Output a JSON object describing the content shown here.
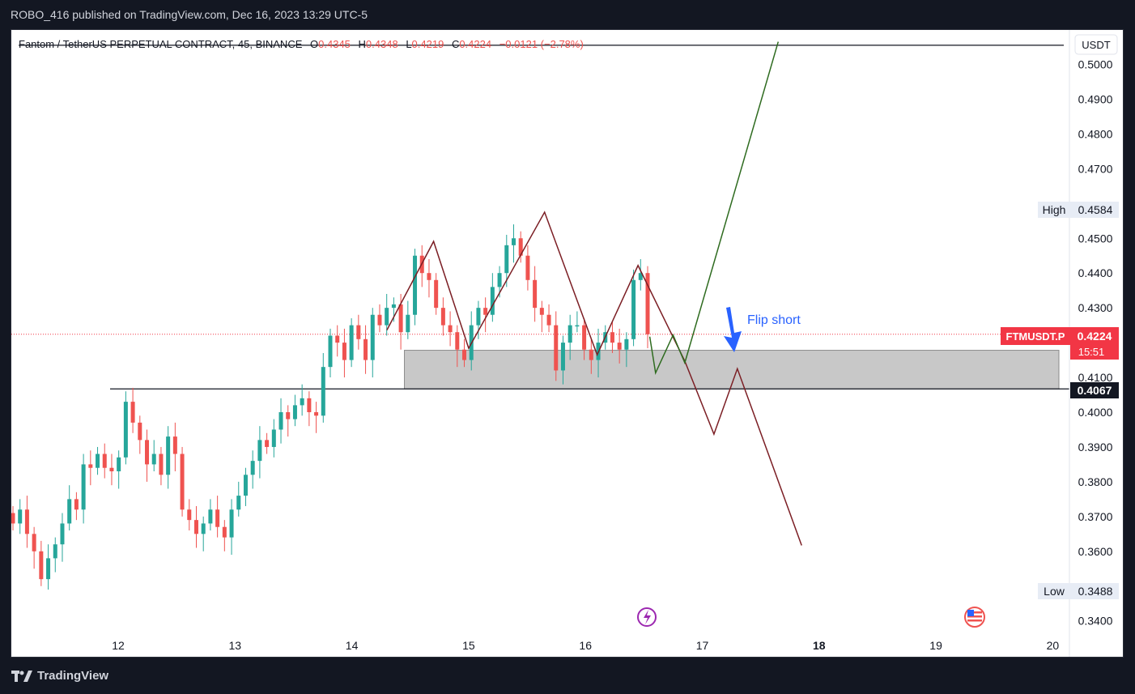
{
  "header": {
    "publisher_line": "ROBO_416 published on TradingView.com, Dec 16, 2023 13:29 UTC-5"
  },
  "legend": {
    "symbol": "Fantom / TetherUS PERPETUAL CONTRACT, 45, BINANCE",
    "o_label": "O",
    "o_value": "0.4345",
    "h_label": "H",
    "h_value": "0.4348",
    "l_label": "L",
    "l_value": "0.4219",
    "c_label": "C",
    "c_value": "0.4224",
    "change": "−0.0121 (−2.78%)"
  },
  "price_axis": {
    "currency": "USDT",
    "ticks": [
      "0.5000",
      "0.4900",
      "0.4800",
      "0.4700",
      "0.4500",
      "0.4400",
      "0.4300",
      "0.4100",
      "0.4000",
      "0.3900",
      "0.3800",
      "0.3700",
      "0.3600",
      "0.3400"
    ]
  },
  "time_axis": {
    "ticks": [
      "12",
      "13",
      "14",
      "15",
      "16",
      "17",
      "18",
      "19",
      "20"
    ]
  },
  "badges": {
    "high_label": "High",
    "high_value": "0.4584",
    "low_label": "Low",
    "low_value": "0.3488",
    "symbol_tag": "FTMUSDT.P",
    "last_price": "0.4224",
    "countdown": "15:51",
    "level_price": "0.4067"
  },
  "annotations": {
    "flip_short": "Flip short"
  },
  "footer": {
    "brand": "TradingView"
  },
  "colors": {
    "up": "#26a69a",
    "down": "#ef5350",
    "pattern": "#7b1e24",
    "bull_path": "#2e6b1f",
    "arrow": "#2962ff",
    "zone": "#c8c8c8"
  },
  "chart_data": {
    "type": "candlestick",
    "title": "Fantom / TetherUS PERPETUAL CONTRACT, 45, BINANCE",
    "x": [
      "12",
      "13",
      "14",
      "15",
      "16",
      "17",
      "18",
      "19",
      "20"
    ],
    "ylim": [
      0.338,
      0.506
    ],
    "grid": false,
    "close_series": [
      0.368,
      0.372,
      0.365,
      0.36,
      0.352,
      0.358,
      0.362,
      0.368,
      0.375,
      0.372,
      0.385,
      0.384,
      0.388,
      0.384,
      0.383,
      0.387,
      0.403,
      0.397,
      0.392,
      0.385,
      0.388,
      0.382,
      0.393,
      0.388,
      0.372,
      0.369,
      0.365,
      0.368,
      0.372,
      0.367,
      0.364,
      0.372,
      0.376,
      0.382,
      0.386,
      0.392,
      0.39,
      0.395,
      0.4,
      0.398,
      0.402,
      0.404,
      0.4,
      0.399,
      0.413,
      0.422,
      0.42,
      0.415,
      0.425,
      0.421,
      0.415,
      0.428,
      0.425,
      0.43,
      0.431,
      0.423,
      0.428,
      0.445,
      0.44,
      0.438,
      0.43,
      0.425,
      0.423,
      0.418,
      0.415,
      0.425,
      0.43,
      0.428,
      0.436,
      0.44,
      0.448,
      0.45,
      0.445,
      0.438,
      0.43,
      0.428,
      0.425,
      0.412,
      0.42,
      0.425,
      0.425,
      0.418,
      0.415,
      0.42,
      0.423,
      0.42,
      0.418,
      0.421,
      0.438,
      0.44,
      0.4224
    ],
    "pattern_lines": [
      {
        "name": "",
        "points": [
          [
            14.3,
            0.4236
          ],
          [
            14.7,
            0.4491
          ],
          [
            15.0,
            0.4184
          ],
          [
            15.65,
            0.4575
          ],
          [
            16.1,
            0.4165
          ],
          [
            16.45,
            0.4422
          ],
          [
            16.85,
            0.4147
          ],
          [
            17.1,
            0.3937
          ],
          [
            17.3,
            0.4125
          ],
          [
            17.85,
            0.3617
          ]
        ]
      },
      {
        "name": "",
        "points": [
          [
            16.55,
            0.4217
          ],
          [
            16.6,
            0.4113
          ],
          [
            16.75,
            0.4222
          ],
          [
            16.85,
            0.4142
          ],
          [
            17.65,
            0.5065
          ]
        ]
      }
    ],
    "levels": [
      {
        "value": 0.4067
      },
      {
        "value": 0.5055
      }
    ],
    "zone": {
      "x_from": 14.45,
      "x_to": 20,
      "y_from": 0.4067,
      "y_to": 0.4178
    },
    "last_price": 0.4224,
    "high": 0.4584,
    "low": 0.3488
  }
}
